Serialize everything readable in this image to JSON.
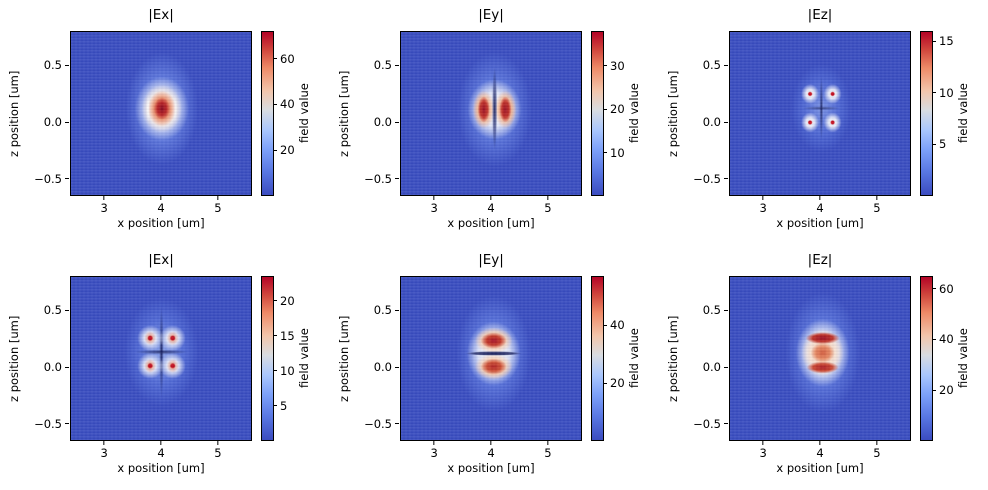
{
  "figure": {
    "background": "#ffffff",
    "colormap": "coolwarm",
    "colormap_min_color": "#3b4cc0",
    "colormap_max_color": "#b40426"
  },
  "axes": {
    "x": {
      "label": "x position [um]",
      "ticks": [
        3,
        4,
        5
      ],
      "range": [
        2.4,
        5.6
      ]
    },
    "z": {
      "label": "z position [um]",
      "tick_labels": [
        "0.5",
        "0.0",
        "−0.5"
      ],
      "tick_values": [
        0.5,
        0.0,
        -0.5
      ],
      "range": [
        -0.65,
        0.8
      ]
    }
  },
  "panels": [
    {
      "id": "top-ex",
      "title": "|Ex|",
      "colorbar_label": "field value",
      "colorbar": {
        "vmin": 0,
        "vmax": 72,
        "ticks": [
          20,
          40,
          60
        ]
      }
    },
    {
      "id": "top-ey",
      "title": "|Ey|",
      "colorbar_label": "field value",
      "colorbar": {
        "vmin": 0,
        "vmax": 38,
        "ticks": [
          10,
          20,
          30
        ]
      }
    },
    {
      "id": "top-ez",
      "title": "|Ez|",
      "colorbar_label": "field value",
      "colorbar": {
        "vmin": 0,
        "vmax": 16,
        "ticks": [
          5,
          10,
          15
        ]
      }
    },
    {
      "id": "bottom-ex",
      "title": "|Ex|",
      "colorbar_label": "field value",
      "colorbar": {
        "vmin": 0,
        "vmax": 23.5,
        "ticks": [
          5,
          10,
          15,
          20
        ]
      }
    },
    {
      "id": "bottom-ey",
      "title": "|Ey|",
      "colorbar_label": "field value",
      "colorbar": {
        "vmin": 0,
        "vmax": 57,
        "ticks": [
          20,
          40
        ]
      }
    },
    {
      "id": "bottom-ez",
      "title": "|Ez|",
      "colorbar_label": "field value",
      "colorbar": {
        "vmin": 0,
        "vmax": 65,
        "ticks": [
          20,
          40,
          60
        ]
      }
    }
  ],
  "chart_data": [
    {
      "type": "heatmap",
      "title": "|Ex|",
      "grid_position": [
        0,
        0
      ],
      "xlabel": "x position [um]",
      "ylabel": "z position [um]",
      "x_range": [
        2.4,
        5.6
      ],
      "z_range": [
        -0.65,
        0.8
      ],
      "xticks": [
        3,
        4,
        5
      ],
      "zticks": [
        0.5,
        0.0,
        -0.5
      ],
      "colorbar_label": "field value",
      "colorbar_ticks": [
        20,
        40,
        60
      ],
      "vmin": 0,
      "vmax": 72,
      "pattern": "single dominant central lobe (fundamental mode)",
      "hotspots": [
        {
          "x": 4.05,
          "z": 0.1,
          "value": 72
        }
      ],
      "notes": "dark-red core at waveguide center, narrow white vertical stripes at x≈3.78 and x≈4.25, white halo and blue glow with horizontal grid banding"
    },
    {
      "type": "heatmap",
      "title": "|Ey|",
      "grid_position": [
        0,
        1
      ],
      "xlabel": "x position [um]",
      "ylabel": "z position [um]",
      "x_range": [
        2.4,
        5.6
      ],
      "z_range": [
        -0.65,
        0.8
      ],
      "xticks": [
        3,
        4,
        5
      ],
      "zticks": [
        0.5,
        0.0,
        -0.5
      ],
      "colorbar_label": "field value",
      "colorbar_ticks": [
        10,
        20,
        30
      ],
      "vmin": 0,
      "vmax": 38,
      "pattern": "two vertical lobes left/right with vertical node line",
      "hotspots": [
        {
          "x": 3.88,
          "z": 0.1,
          "value": 38
        },
        {
          "x": 4.25,
          "z": 0.1,
          "value": 38
        }
      ],
      "node_line": {
        "orientation": "vertical",
        "x": 4.07,
        "z_extent": [
          -0.2,
          0.45
        ]
      }
    },
    {
      "type": "heatmap",
      "title": "|Ez|",
      "grid_position": [
        0,
        2
      ],
      "xlabel": "x position [um]",
      "ylabel": "z position [um]",
      "x_range": [
        2.4,
        5.6
      ],
      "z_range": [
        -0.65,
        0.8
      ],
      "xticks": [
        3,
        4,
        5
      ],
      "zticks": [
        0.5,
        0.0,
        -0.5
      ],
      "colorbar_label": "field value",
      "colorbar_ticks": [
        5,
        10,
        15
      ],
      "vmin": 0,
      "vmax": 16,
      "pattern": "four small corner lobes with tiny red peaks (quadrupole)",
      "hotspots": [
        {
          "x": 3.82,
          "z": 0.24,
          "value": 16
        },
        {
          "x": 4.22,
          "z": 0.24,
          "value": 16
        },
        {
          "x": 3.82,
          "z": 0.01,
          "value": 16
        },
        {
          "x": 4.22,
          "z": 0.01,
          "value": 16
        }
      ],
      "node_line": {
        "orientation": "cross",
        "x": 4.02,
        "z": 0.12
      }
    },
    {
      "type": "heatmap",
      "title": "|Ex|",
      "grid_position": [
        1,
        0
      ],
      "xlabel": "x position [um]",
      "ylabel": "z position [um]",
      "x_range": [
        2.4,
        5.6
      ],
      "z_range": [
        -0.65,
        0.8
      ],
      "xticks": [
        3,
        4,
        5
      ],
      "zticks": [
        0.5,
        0.0,
        -0.5
      ],
      "colorbar_label": "field value",
      "colorbar_ticks": [
        5,
        10,
        15,
        20
      ],
      "vmin": 0,
      "vmax": 23.5,
      "pattern": "four lobes with red peaks and dark cross node lines (quadrupole)",
      "hotspots": [
        {
          "x": 3.8,
          "z": 0.23,
          "value": 23
        },
        {
          "x": 4.21,
          "z": 0.23,
          "value": 23
        },
        {
          "x": 3.8,
          "z": 0.01,
          "value": 23
        },
        {
          "x": 4.21,
          "z": 0.01,
          "value": 23
        }
      ],
      "node_line": {
        "orientation": "cross",
        "x": 4.0,
        "z": 0.12
      }
    },
    {
      "type": "heatmap",
      "title": "|Ey|",
      "grid_position": [
        1,
        1
      ],
      "xlabel": "x position [um]",
      "ylabel": "z position [um]",
      "x_range": [
        2.4,
        5.6
      ],
      "z_range": [
        -0.65,
        0.8
      ],
      "xticks": [
        3,
        4,
        5
      ],
      "zticks": [
        0.5,
        0.0,
        -0.5
      ],
      "colorbar_label": "field value",
      "colorbar_ticks": [
        20,
        40
      ],
      "vmin": 0,
      "vmax": 57,
      "pattern": "two horizontal lobes stacked vertically with horizontal node line",
      "hotspots": [
        {
          "x": 4.05,
          "z": 0.22,
          "value": 57
        },
        {
          "x": 4.05,
          "z": 0.01,
          "value": 50
        }
      ],
      "node_line": {
        "orientation": "horizontal",
        "z": 0.12,
        "x_extent": [
          3.6,
          4.4
        ]
      }
    },
    {
      "type": "heatmap",
      "title": "|Ez|",
      "grid_position": [
        1,
        2
      ],
      "xlabel": "x position [um]",
      "ylabel": "z position [um]",
      "x_range": [
        2.4,
        5.6
      ],
      "z_range": [
        -0.65,
        0.8
      ],
      "xticks": [
        3,
        4,
        5
      ],
      "zticks": [
        0.5,
        0.0,
        -0.5
      ],
      "colorbar_label": "field value",
      "colorbar_ticks": [
        20,
        40,
        60
      ],
      "vmin": 0,
      "vmax": 65,
      "pattern": "three stacked lobes: wide flat top lobe, round middle blob, wide flat bottom lobe",
      "hotspots": [
        {
          "x": 4.05,
          "z": 0.25,
          "value": 65
        },
        {
          "x": 4.05,
          "z": 0.12,
          "value": 50
        },
        {
          "x": 4.05,
          "z": 0.0,
          "value": 58
        }
      ]
    }
  ]
}
